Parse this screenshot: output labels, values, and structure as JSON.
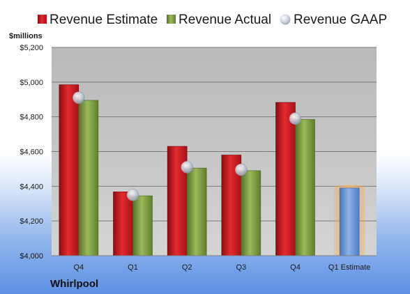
{
  "company": "Whirlpool",
  "chart_data": {
    "type": "bar",
    "unit_label": "$millions",
    "categories": [
      "Q4",
      "Q1",
      "Q2",
      "Q3",
      "Q4",
      "Q1 Estimate"
    ],
    "ylim": [
      4000,
      5200
    ],
    "yticks": [
      4000,
      4200,
      4400,
      4600,
      4800,
      5000,
      5200
    ],
    "ytick_labels": [
      "$4,000",
      "$4,200",
      "$4,400",
      "$4,600",
      "$4,800",
      "$5,000",
      "$5,200"
    ],
    "grid": true,
    "legend_position": "top",
    "series": [
      {
        "name": "Revenue Estimate",
        "kind": "bar",
        "color": "#c8161d",
        "values": [
          4985,
          4368,
          4630,
          4580,
          4883,
          null
        ]
      },
      {
        "name": "Revenue Actual",
        "kind": "bar",
        "color": "#7a9a3a",
        "values": [
          4895,
          4345,
          4505,
          4490,
          4785,
          null
        ]
      },
      {
        "name": "Revenue GAAP",
        "kind": "marker",
        "color": "#b9c3d3",
        "values": [
          4910,
          4350,
          4510,
          4495,
          4790,
          null
        ]
      }
    ],
    "estimate_bar": {
      "category": "Q1 Estimate",
      "value": 4390,
      "color": "#6f9ad8",
      "glow_color": "#f5a54a"
    }
  }
}
